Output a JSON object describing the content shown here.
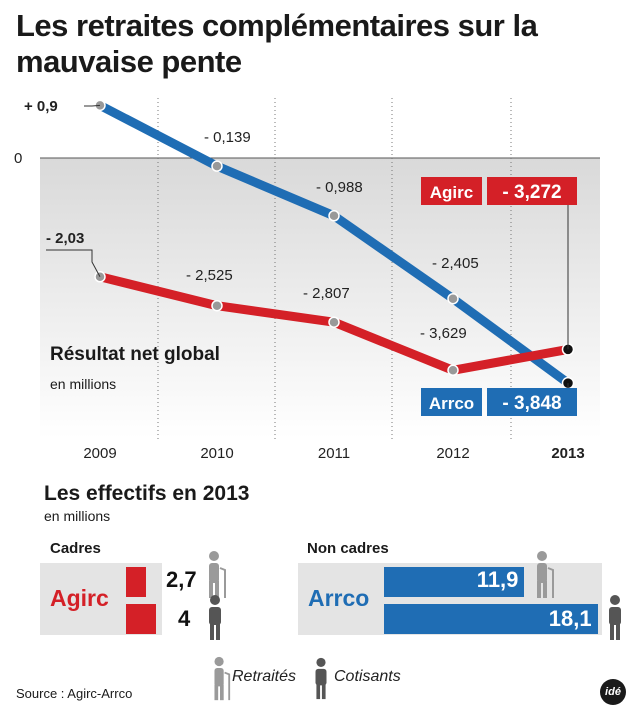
{
  "title": "Les retraites complémentaires sur la mauvaise pente",
  "chart_data": {
    "type": "line",
    "x": [
      "2009",
      "2010",
      "2011",
      "2012",
      "2013"
    ],
    "series": [
      {
        "name": "Arrco",
        "values": [
          0.9,
          -0.139,
          -0.988,
          -2.405,
          -3.848
        ],
        "labels": [
          "+ 0,9",
          "- 0,139",
          "- 0,988",
          "- 2,405",
          "- 3,848"
        ]
      },
      {
        "name": "Agirc",
        "values": [
          -2.03,
          -2.525,
          -2.807,
          -3.629,
          -3.272
        ],
        "labels": [
          "- 2,03",
          "- 2,525",
          "- 2,807",
          "- 3,629",
          "- 3,272"
        ]
      }
    ],
    "ytick_zero": "0",
    "colors": {
      "Arrco": "#1f6db4",
      "Agirc": "#d42027"
    }
  },
  "chart_caption": {
    "title": "Résultat net global",
    "unit": "en millions"
  },
  "effectifs": {
    "title": "Les effectifs en 2013",
    "unit": "en millions",
    "cadres": {
      "label": "Cadres",
      "regime": "Agirc",
      "retraites": "2,7",
      "cotisants": "4",
      "retraites_value": 2.7,
      "cotisants_value": 4
    },
    "non_cadres": {
      "label": "Non cadres",
      "regime": "Arrco",
      "retraites": "11,9",
      "cotisants": "18,1",
      "retraites_value": 11.9,
      "cotisants_value": 18.1
    }
  },
  "legend": {
    "retraites": "Retraités",
    "cotisants": "Cotisants",
    "retraites_icon": "person-with-cane-icon",
    "cotisants_icon": "person-icon"
  },
  "source": "Source : Agirc-Arrco",
  "logo": "idé"
}
